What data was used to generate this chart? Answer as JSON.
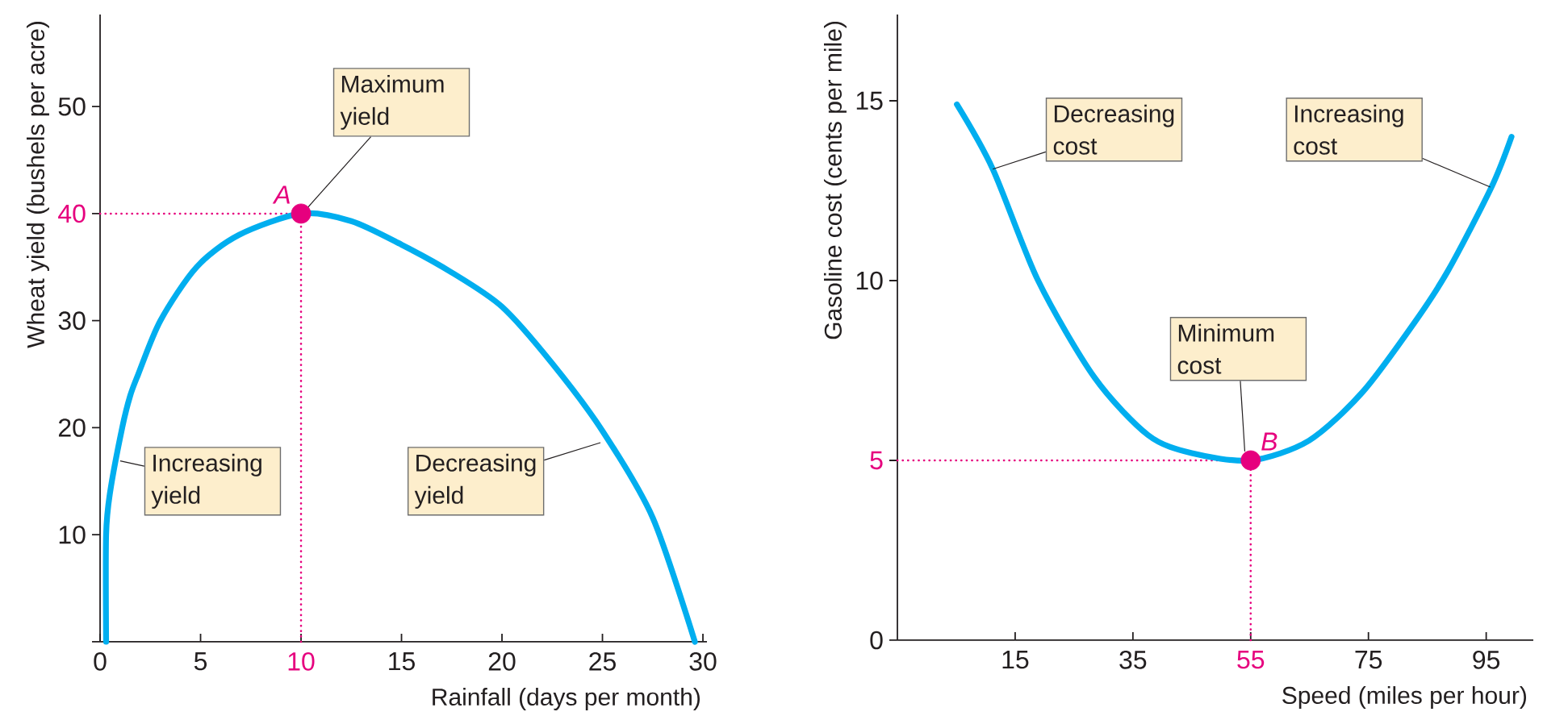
{
  "chart_data": [
    {
      "type": "line",
      "xlabel": "Rainfall (days per month)",
      "ylabel": "Wheat yield (bushels per acre)",
      "xlim": [
        0,
        30.2
      ],
      "ylim": [
        0,
        58.6
      ],
      "xticks": [
        0,
        5,
        10,
        15,
        20,
        25,
        30
      ],
      "yticks": [
        {
          "value": 0,
          "label": null
        },
        10,
        20,
        30,
        40,
        50
      ],
      "series": [
        {
          "color": "#00aeef",
          "marker": "none",
          "x": [
            0.3,
            0.3,
            0.5,
            1.1,
            1.5,
            1.9,
            3.0,
            4.8,
            6.9,
            10,
            12.5,
            15,
            17.5,
            20,
            22.5,
            25,
            27.5,
            29.6
          ],
          "values": [
            0,
            10,
            14,
            20,
            23,
            25,
            30,
            35,
            38,
            40,
            39.3,
            37.1,
            34.5,
            31.3,
            26,
            19.7,
            11.6,
            0
          ]
        },
        {
          "type": "scatter",
          "color": "#e6007e",
          "marker": "circle",
          "x": [
            10
          ],
          "values": [
            40
          ]
        }
      ],
      "ref_lines": [
        {
          "axis": "x",
          "value": 10,
          "color": "#e6007e",
          "line_style": "dotted"
        },
        {
          "axis": "y",
          "value": 40,
          "color": "#e6007e",
          "line_style": "dotted"
        }
      ],
      "annotations": [
        {
          "text": "Maximum yield",
          "x": 10.3,
          "y": 40.5
        },
        {
          "text": "A",
          "x": 10,
          "y": 40
        },
        {
          "text": "Increasing yield",
          "x": 1.0,
          "y": 16.9
        },
        {
          "text": "Decreasing yield",
          "x": 24.9,
          "y": 18.6
        }
      ]
    },
    {
      "type": "line",
      "xlabel": "Speed (miles per hour)",
      "ylabel": "Gasoline cost (cents per mile)",
      "xlim": [
        -5,
        103
      ],
      "ylim": [
        0,
        17.4
      ],
      "xticks": [
        15,
        35,
        55,
        75,
        95
      ],
      "yticks": [
        0,
        5,
        10,
        15
      ],
      "series": [
        {
          "color": "#00aeef",
          "marker": "none",
          "x": [
            5.1,
            11.2,
            18.9,
            28.5,
            37.6,
            45,
            55,
            64.9,
            74,
            83.1,
            88.6,
            95.9,
            99.3
          ],
          "values": [
            14.9,
            13.1,
            10,
            7.3,
            5.7,
            5.2,
            5,
            5.55,
            6.9,
            8.9,
            10.3,
            12.6,
            14.0
          ]
        },
        {
          "type": "scatter",
          "color": "#e6007e",
          "marker": "circle",
          "x": [
            55
          ],
          "values": [
            5
          ]
        }
      ],
      "ref_lines": [
        {
          "axis": "x",
          "value": 55,
          "color": "#e6007e",
          "line_style": "dotted"
        },
        {
          "axis": "y",
          "value": 5,
          "color": "#e6007e",
          "line_style": "dotted"
        }
      ],
      "annotations": [
        {
          "text": "Decreasing cost",
          "x": 11.2,
          "y": 13.1
        },
        {
          "text": "Increasing cost",
          "x": 95.7,
          "y": 12.6
        },
        {
          "text": "Minimum cost",
          "x": 54,
          "y": 5.25
        },
        {
          "text": "B",
          "x": 55,
          "y": 5
        }
      ]
    }
  ]
}
